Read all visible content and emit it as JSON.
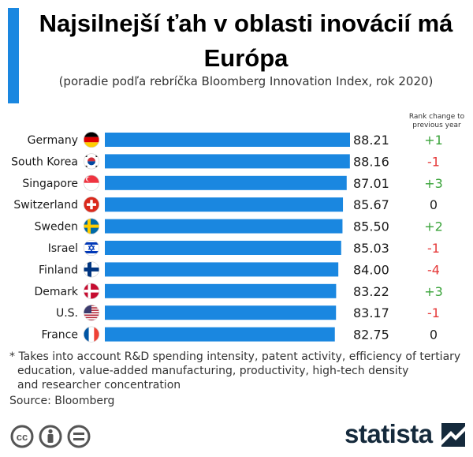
{
  "header": {
    "title_line1": "Najsilnejší ťah v oblasti inovácií má",
    "title_line2": "Európa",
    "subtitle": "(poradie podľa rebríčka Bloomberg Innovation Index, rok 2020)",
    "rank_header_line1": "Rank change to",
    "rank_header_line2": "previous year"
  },
  "colors": {
    "bar": "#1a87e0",
    "accent": "#1a87e0",
    "positive": "#3aa33a",
    "negative": "#e53838",
    "neutral": "#222222"
  },
  "chart_data": {
    "type": "bar",
    "orientation": "horizontal",
    "categories": [
      "Germany",
      "South Korea",
      "Singapore",
      "Switzerland",
      "Sweden",
      "Israel",
      "Finland",
      "Demark",
      "U.S.",
      "France"
    ],
    "values": [
      88.21,
      88.16,
      87.01,
      85.67,
      85.5,
      85.03,
      84.0,
      83.22,
      83.17,
      82.75
    ],
    "value_labels": [
      "88.21",
      "88.16",
      "87.01",
      "85.67",
      "85.50",
      "85.03",
      "84.00",
      "83.22",
      "83.17",
      "82.75"
    ],
    "rank_change": [
      "+1",
      "-1",
      "+3",
      "0",
      "+2",
      "-1",
      "-4",
      "+3",
      "-1",
      "0"
    ],
    "flag_icons": [
      "germany-flag-icon",
      "south-korea-flag-icon",
      "singapore-flag-icon",
      "switzerland-flag-icon",
      "sweden-flag-icon",
      "israel-flag-icon",
      "finland-flag-icon",
      "denmark-flag-icon",
      "us-flag-icon",
      "france-flag-icon"
    ],
    "grid": false,
    "legend": "none"
  },
  "footnote": {
    "line1": "* Takes into account R&D spending intensity, patent activity, efficiency of tertiary",
    "line2": "education, value-added manufacturing, productivity, high-tech density",
    "line3": "and researcher concentration"
  },
  "source": "Source: Bloomberg",
  "branding": {
    "logo_text": "statista",
    "license_icons": [
      "creative-commons-icon",
      "attribution-icon",
      "no-derivatives-icon"
    ]
  }
}
